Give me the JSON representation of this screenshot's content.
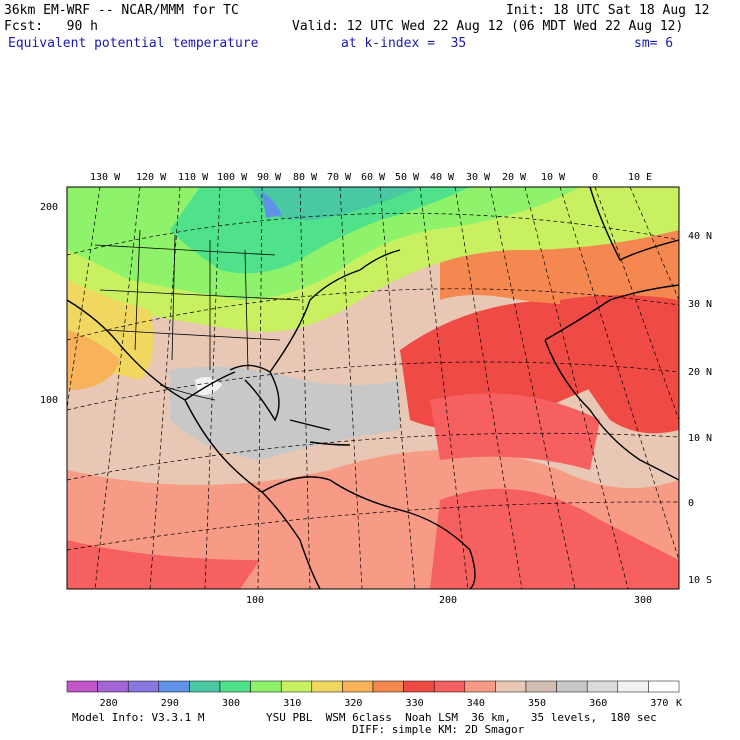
{
  "header": {
    "model_line": "36km EM-WRF -- NCAR/MMM for TC",
    "init": "Init: 18 UTC Sat 18 Aug 12",
    "fcst": "Fcst:   90 h",
    "valid": "Valid: 12 UTC Wed 22 Aug 12 (06 MDT Wed 22 Aug 12)",
    "field": "Equivalent potential temperature",
    "level": "at k-index =  35",
    "smoothing": "sm= 6"
  },
  "map": {
    "lon_labels": [
      "130 W",
      "120 W",
      "110 W",
      "100 W",
      "90 W",
      "80 W",
      "70 W",
      "60 W",
      "50 W",
      "40 W",
      "30 W",
      "20 W",
      "10 W",
      "0",
      "10 E"
    ],
    "lat_labels": [
      "40 N",
      "30 N",
      "20 N",
      "10 N",
      "0",
      "10 S"
    ],
    "grid_x_labels": [
      "100",
      "200",
      "300"
    ],
    "grid_y_labels": [
      "200",
      "100"
    ]
  },
  "colorbar": {
    "unit": "K",
    "tick_labels": [
      "280",
      "290",
      "300",
      "310",
      "320",
      "330",
      "340",
      "350",
      "360",
      "370"
    ],
    "colors": [
      "#c356c9",
      "#a466d6",
      "#8778e0",
      "#5f92e6",
      "#49c8a3",
      "#4fe28a",
      "#8ef26a",
      "#c8f060",
      "#f0d860",
      "#f7b25a",
      "#f58850",
      "#f04a44",
      "#f66060",
      "#f79a86",
      "#e8c8b4",
      "#d2bdb3",
      "#c8c8c8",
      "#dcdcdc",
      "#f2f2f2",
      "#ffffff"
    ]
  },
  "footer": {
    "model_info": "Model Info: V3.3.1 M",
    "physics_1": "YSU PBL  WSM 6class  Noah LSM  36 km,   35 levels,  180 sec",
    "physics_2": "DIFF: simple KM: 2D Smagor"
  }
}
